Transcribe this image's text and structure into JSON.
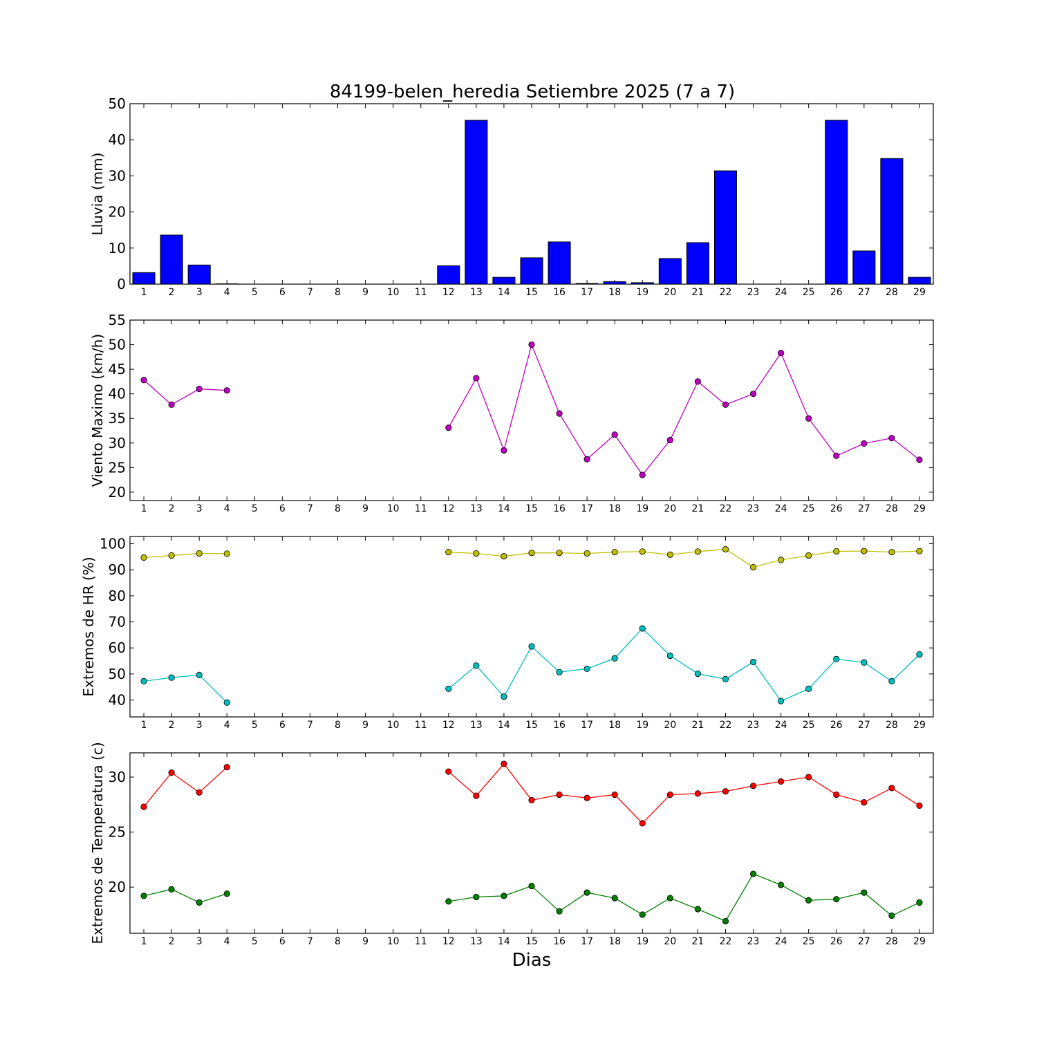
{
  "figure": {
    "title": "84199-belen_heredia Setiembre 2025  (7 a 7)",
    "xlabel": "Dias"
  },
  "chart_data": [
    {
      "type": "bar",
      "ylabel": "Lluvia (mm)",
      "x": [
        1,
        2,
        3,
        4,
        5,
        6,
        7,
        8,
        9,
        10,
        11,
        12,
        13,
        14,
        15,
        16,
        17,
        18,
        19,
        20,
        21,
        22,
        23,
        24,
        25,
        26,
        27,
        28,
        29
      ],
      "xlim": [
        0.5,
        29.5
      ],
      "ylim": [
        0,
        50
      ],
      "yticks": [
        0,
        10,
        20,
        30,
        40,
        50
      ],
      "series": [
        {
          "color": "#0000ff",
          "values": [
            3.2,
            13.6,
            5.3,
            0.1,
            0,
            0,
            0,
            0,
            0,
            0,
            0,
            5.1,
            45.4,
            1.9,
            7.3,
            11.7,
            0.2,
            0.7,
            0.4,
            7.1,
            11.5,
            31.4,
            0,
            0,
            0,
            45.4,
            9.2,
            34.8,
            1.9
          ]
        }
      ]
    },
    {
      "type": "line",
      "ylabel": "Viento Maximo (km/h)",
      "x": [
        1,
        2,
        3,
        4,
        5,
        6,
        7,
        8,
        9,
        10,
        11,
        12,
        13,
        14,
        15,
        16,
        17,
        18,
        19,
        20,
        21,
        22,
        23,
        24,
        25,
        26,
        27,
        28,
        29
      ],
      "xlim": [
        0.5,
        29.5
      ],
      "ylim": [
        18.3,
        55
      ],
      "yticks": [
        20,
        25,
        30,
        35,
        40,
        45,
        50,
        55
      ],
      "series": [
        {
          "color": "#bf00bf",
          "values": [
            42.8,
            37.8,
            41.0,
            40.7,
            null,
            null,
            null,
            null,
            null,
            null,
            null,
            33.1,
            43.2,
            28.5,
            50.0,
            36.0,
            26.7,
            31.7,
            23.5,
            30.6,
            42.5,
            37.8,
            40.0,
            48.3,
            35.0,
            27.4,
            29.9,
            31.0,
            26.6
          ]
        }
      ]
    },
    {
      "type": "line",
      "ylabel": "Extremos de HR (%)",
      "x": [
        1,
        2,
        3,
        4,
        5,
        6,
        7,
        8,
        9,
        10,
        11,
        12,
        13,
        14,
        15,
        16,
        17,
        18,
        19,
        20,
        21,
        22,
        23,
        24,
        25,
        26,
        27,
        28,
        29
      ],
      "xlim": [
        0.5,
        29.5
      ],
      "ylim": [
        33.5,
        102.8
      ],
      "yticks": [
        40,
        50,
        60,
        70,
        80,
        90,
        100
      ],
      "series": [
        {
          "color": "#bfbf00",
          "values": [
            94.7,
            95.5,
            96.3,
            96.2,
            null,
            null,
            null,
            null,
            null,
            null,
            null,
            96.8,
            96.3,
            95.2,
            96.5,
            96.5,
            96.3,
            96.8,
            97.0,
            95.8,
            97.0,
            97.9,
            91.0,
            93.8,
            95.5,
            97.1,
            97.2,
            96.8,
            97.2
          ]
        },
        {
          "color": "#00bfbf",
          "values": [
            47.2,
            48.6,
            49.6,
            39.0,
            null,
            null,
            null,
            null,
            null,
            null,
            null,
            44.3,
            53.2,
            41.3,
            60.6,
            50.7,
            52.0,
            56.0,
            67.5,
            57.0,
            50.1,
            48.0,
            54.6,
            39.6,
            44.3,
            55.7,
            54.4,
            47.2,
            57.5
          ]
        }
      ]
    },
    {
      "type": "line",
      "ylabel": "Extremos de Temperatura (c)",
      "x": [
        1,
        2,
        3,
        4,
        5,
        6,
        7,
        8,
        9,
        10,
        11,
        12,
        13,
        14,
        15,
        16,
        17,
        18,
        19,
        20,
        21,
        22,
        23,
        24,
        25,
        26,
        27,
        28,
        29
      ],
      "xlim": [
        0.5,
        29.5
      ],
      "ylim": [
        15.8,
        32.2
      ],
      "yticks": [
        20,
        25,
        30
      ],
      "series": [
        {
          "color": "#ff0000",
          "values": [
            27.3,
            30.4,
            28.6,
            30.9,
            null,
            null,
            null,
            null,
            null,
            null,
            null,
            30.5,
            28.3,
            31.2,
            27.9,
            28.4,
            28.1,
            28.4,
            25.8,
            28.4,
            28.5,
            28.7,
            29.2,
            29.6,
            30.0,
            28.4,
            27.7,
            29.0,
            27.4
          ]
        },
        {
          "color": "#007f00",
          "values": [
            19.2,
            19.8,
            18.6,
            19.4,
            null,
            null,
            null,
            null,
            null,
            null,
            null,
            18.7,
            19.1,
            19.2,
            20.1,
            17.8,
            19.5,
            19.0,
            17.5,
            19.0,
            18.0,
            16.9,
            21.2,
            20.2,
            18.8,
            18.9,
            19.5,
            17.4,
            18.6
          ]
        }
      ]
    }
  ]
}
